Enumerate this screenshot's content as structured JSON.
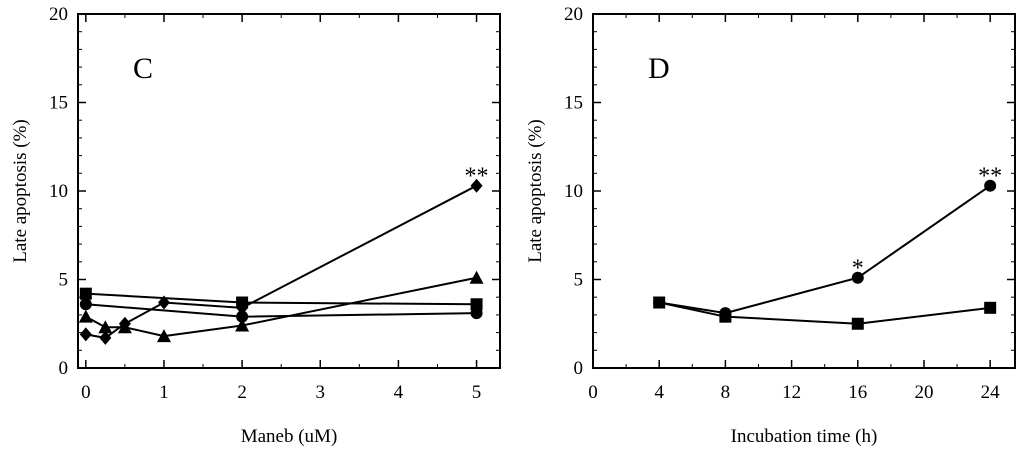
{
  "chart_data": [
    {
      "type": "line",
      "panel_label": "C",
      "xlabel": "Maneb (uM)",
      "ylabel": "Late apoptosis (%)",
      "xlim": [
        -0.1,
        5.3
      ],
      "ylim": [
        0,
        20
      ],
      "xticks": [
        0,
        1,
        2,
        3,
        4,
        5
      ],
      "yticks": [
        0,
        5,
        10,
        15,
        20
      ],
      "series": [
        {
          "name": "diamond",
          "marker": "diamond",
          "x": [
            0,
            0.25,
            0.5,
            1,
            2,
            5
          ],
          "values": [
            1.9,
            1.7,
            2.5,
            3.7,
            3.4,
            10.3
          ]
        },
        {
          "name": "triangle",
          "marker": "triangle",
          "x": [
            0,
            0.25,
            0.5,
            1,
            2,
            5
          ],
          "values": [
            2.9,
            2.3,
            2.3,
            1.8,
            2.4,
            5.1
          ]
        },
        {
          "name": "circle",
          "marker": "circle",
          "x": [
            0,
            2,
            5
          ],
          "values": [
            3.6,
            2.9,
            3.1
          ]
        },
        {
          "name": "square",
          "marker": "square",
          "x": [
            0,
            2,
            5
          ],
          "values": [
            4.2,
            3.7,
            3.6
          ]
        }
      ],
      "annotations": [
        {
          "text": "**",
          "x": 5,
          "y": 10.3
        }
      ]
    },
    {
      "type": "line",
      "panel_label": "D",
      "xlabel": "Incubation time (h)",
      "ylabel": "Late apoptosis (%)",
      "xlim": [
        0,
        25.5
      ],
      "ylim": [
        0,
        20
      ],
      "xticks": [
        0,
        4,
        8,
        12,
        16,
        20,
        24
      ],
      "yticks": [
        0,
        5,
        10,
        15,
        20
      ],
      "series": [
        {
          "name": "circle",
          "marker": "circle",
          "x": [
            4,
            8,
            16,
            24
          ],
          "values": [
            3.7,
            3.1,
            5.1,
            10.3
          ]
        },
        {
          "name": "square",
          "marker": "square",
          "x": [
            4,
            8,
            16,
            24
          ],
          "values": [
            3.7,
            2.9,
            2.5,
            3.4
          ]
        }
      ],
      "annotations": [
        {
          "text": "*",
          "x": 16,
          "y": 5.1
        },
        {
          "text": "**",
          "x": 24,
          "y": 10.3
        }
      ]
    }
  ]
}
